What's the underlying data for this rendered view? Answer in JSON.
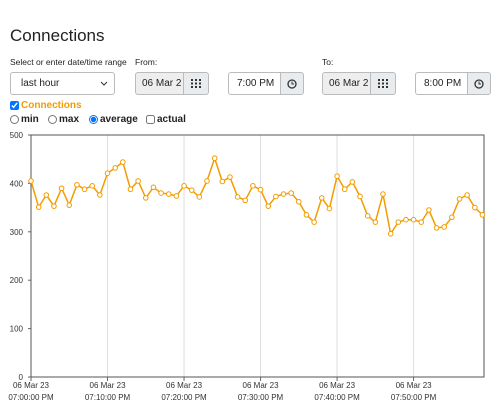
{
  "header": {
    "title": "Connections"
  },
  "controls": {
    "range_label": "Select or enter date/time range",
    "range_value": "last hour",
    "from_label": "From:",
    "from_date": "06 Mar 2",
    "from_time": "7:00 PM",
    "to_label": "To:",
    "to_date": "06 Mar 2",
    "to_time": "8:00 PM",
    "modes": [
      "min",
      "max",
      "average"
    ],
    "mode_selected": 2,
    "actual": "actual"
  },
  "chart_data": {
    "type": "line",
    "x": [
      0,
      1,
      2,
      3,
      4,
      5,
      6,
      7,
      8,
      9,
      10,
      11,
      12,
      13,
      14,
      15,
      16,
      17,
      18,
      19,
      20,
      21,
      22,
      23,
      24,
      25,
      26,
      27,
      28,
      29,
      30,
      31,
      32,
      33,
      34,
      35,
      36,
      37,
      38,
      39,
      40,
      41,
      42,
      43,
      44,
      45,
      46,
      47,
      48,
      49,
      50,
      51,
      52,
      53,
      54,
      55,
      56,
      57,
      58,
      59
    ],
    "series": [
      {
        "name": "Connections",
        "color": "#f39c00",
        "values": [
          405,
          351,
          376,
          353,
          390,
          355,
          397,
          388,
          395,
          376,
          421,
          432,
          444,
          388,
          405,
          370,
          392,
          380,
          378,
          374,
          395,
          386,
          372,
          405,
          452,
          404,
          413,
          372,
          365,
          395,
          387,
          353,
          373,
          378,
          380,
          362,
          335,
          320,
          370,
          348,
          415,
          388,
          403,
          373,
          333,
          320,
          378,
          296,
          320,
          325,
          325,
          320,
          345,
          308,
          310,
          330,
          368,
          376,
          350,
          335
        ]
      }
    ],
    "xlim": [
      0,
      59.2
    ],
    "xticks": [
      {
        "value": 0,
        "label": [
          "06 Mar 23",
          "07:00:00 PM"
        ]
      },
      {
        "value": 10,
        "label": [
          "06 Mar 23",
          "07:10:00 PM"
        ]
      },
      {
        "value": 20,
        "label": [
          "06 Mar 23",
          "07:20:00 PM"
        ]
      },
      {
        "value": 30,
        "label": [
          "06 Mar 23",
          "07:30:00 PM"
        ]
      },
      {
        "value": 40,
        "label": [
          "06 Mar 23",
          "07:40:00 PM"
        ]
      },
      {
        "value": 50,
        "label": [
          "06 Mar 23",
          "07:50:00 PM"
        ]
      }
    ],
    "ylim": [
      0,
      500
    ],
    "yticks": [
      0,
      100,
      200,
      300,
      400,
      500
    ],
    "grid": "x"
  }
}
